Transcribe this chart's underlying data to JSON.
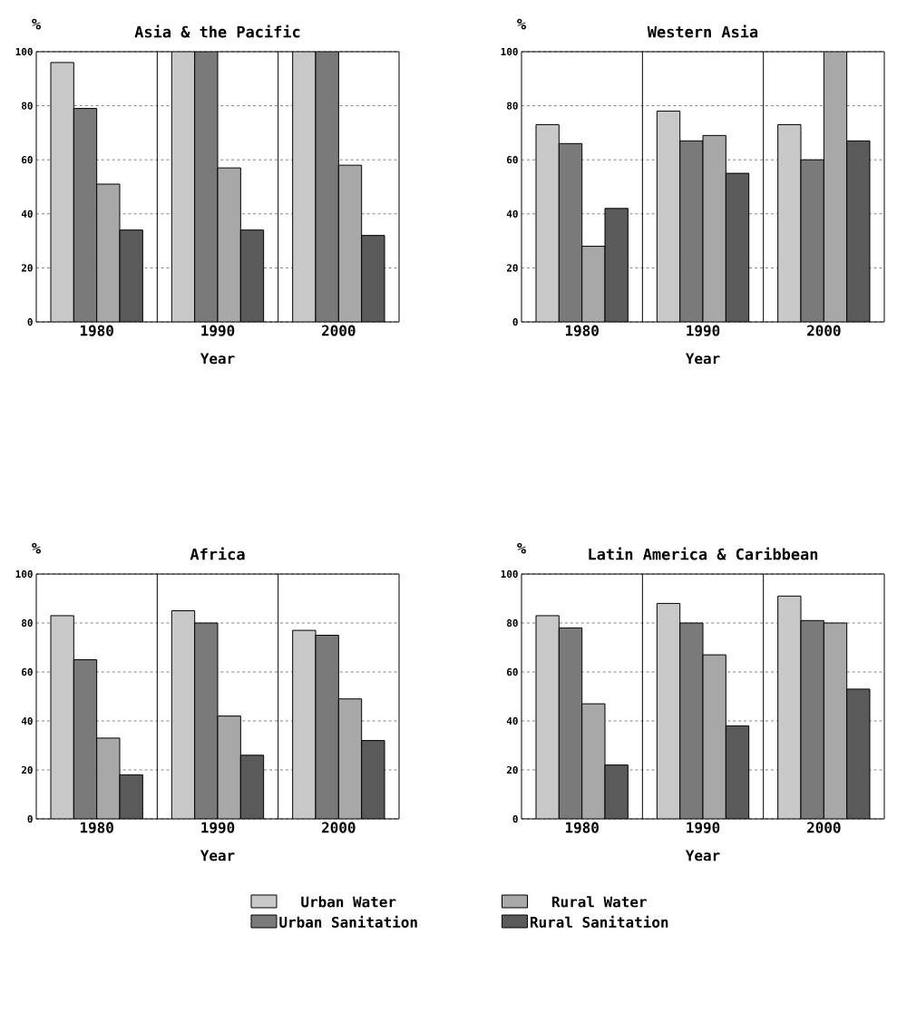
{
  "chart_data": [
    {
      "type": "bar",
      "title": "Asia & the Pacific",
      "ylabel": "%",
      "xlabel": "Year",
      "categories": [
        "1980",
        "1990",
        "2000"
      ],
      "ylim": [
        0,
        100
      ],
      "yticks": [
        0,
        20,
        40,
        60,
        80,
        100
      ],
      "grid": "y",
      "series": [
        {
          "color": "#c8c8c8",
          "values": [
            96,
            100,
            100
          ]
        },
        {
          "color": "#7a7a7a",
          "values": [
            79,
            100,
            100
          ]
        },
        {
          "color": "#a8a8a8",
          "values": [
            51,
            57,
            58
          ]
        },
        {
          "color": "#5a5a5a",
          "values": [
            34,
            34,
            32
          ]
        }
      ]
    },
    {
      "type": "bar",
      "title": "Western Asia",
      "ylabel": "%",
      "xlabel": "Year",
      "categories": [
        "1980",
        "1990",
        "2000"
      ],
      "ylim": [
        0,
        100
      ],
      "yticks": [
        0,
        20,
        40,
        60,
        80,
        100
      ],
      "grid": "y",
      "series": [
        {
          "color": "#c8c8c8",
          "values": [
            73,
            78,
            73
          ]
        },
        {
          "color": "#7a7a7a",
          "values": [
            66,
            67,
            60
          ]
        },
        {
          "color": "#a8a8a8",
          "values": [
            28,
            69,
            100
          ]
        },
        {
          "color": "#5a5a5a",
          "values": [
            42,
            55,
            67
          ]
        }
      ]
    },
    {
      "type": "bar",
      "title": "Africa",
      "ylabel": "%",
      "xlabel": "Year",
      "categories": [
        "1980",
        "1990",
        "2000"
      ],
      "ylim": [
        0,
        100
      ],
      "yticks": [
        0,
        20,
        40,
        60,
        80,
        100
      ],
      "grid": "y",
      "legend": "bottom",
      "series": [
        {
          "name": "Urban Water",
          "color": "#c8c8c8",
          "values": [
            83,
            85,
            77
          ]
        },
        {
          "name": "Urban Sanitation",
          "color": "#7a7a7a",
          "values": [
            65,
            80,
            75
          ]
        },
        {
          "name": "Rural Water",
          "color": "#a8a8a8",
          "values": [
            33,
            42,
            49
          ]
        },
        {
          "name": "Rural Sanitation",
          "color": "#5a5a5a",
          "values": [
            18,
            26,
            32
          ]
        }
      ]
    },
    {
      "type": "bar",
      "title": "Latin America & Caribbean",
      "ylabel": "%",
      "xlabel": "Year",
      "categories": [
        "1980",
        "1990",
        "2000"
      ],
      "ylim": [
        0,
        100
      ],
      "yticks": [
        0,
        20,
        40,
        60,
        80,
        100
      ],
      "grid": "y",
      "series": [
        {
          "color": "#c8c8c8",
          "values": [
            83,
            88,
            91
          ]
        },
        {
          "color": "#7a7a7a",
          "values": [
            78,
            80,
            81
          ]
        },
        {
          "color": "#a8a8a8",
          "values": [
            47,
            67,
            80
          ]
        },
        {
          "color": "#5a5a5a",
          "values": [
            22,
            38,
            53
          ]
        }
      ]
    }
  ]
}
